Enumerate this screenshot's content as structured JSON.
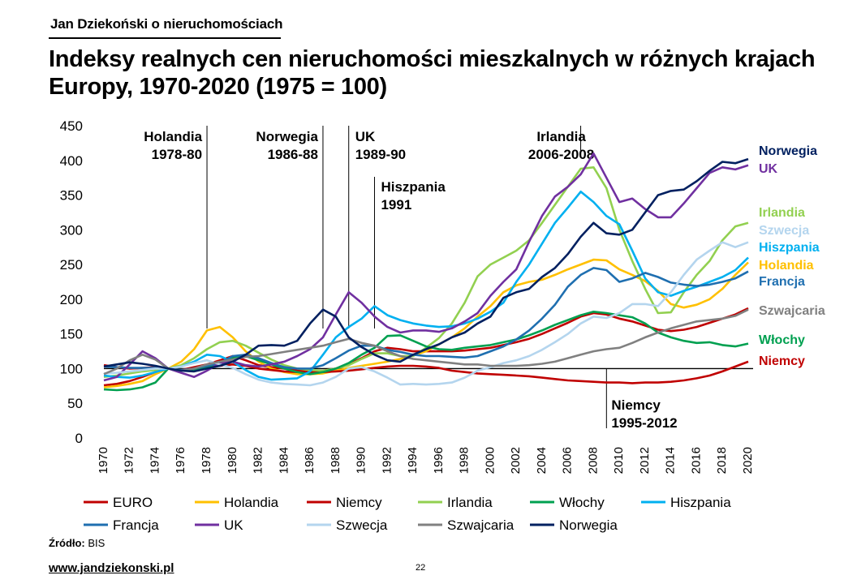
{
  "header": {
    "brand": "Jan Dziekoński o nieruchomościach",
    "title": "Indeksy realnych cen nieruchomości mieszkalnych w różnych krajach Europy, 1970-2020 (1975 = 100)"
  },
  "footer": {
    "source_label": "Źródło:",
    "source_value": "BIS",
    "website": "www.jandziekonski.pl",
    "page_number": "22"
  },
  "chart_data": {
    "type": "line",
    "title": "Indeksy realnych cen nieruchomości mieszkalnych w różnych krajach Europy, 1970-2020 (1975 = 100)",
    "xlabel": "",
    "ylabel": "",
    "xlim": [
      1970,
      2020
    ],
    "ylim": [
      0,
      450
    ],
    "yticks": [
      0,
      50,
      100,
      150,
      200,
      250,
      300,
      350,
      400,
      450
    ],
    "xticks": [
      1970,
      1972,
      1974,
      1976,
      1978,
      1980,
      1982,
      1984,
      1986,
      1988,
      1990,
      1992,
      1994,
      1996,
      1998,
      2000,
      2002,
      2004,
      2006,
      2008,
      2010,
      2012,
      2014,
      2016,
      2018,
      2020
    ],
    "grid": false,
    "baseline": 100,
    "legend_position": "bottom",
    "annotations": [
      {
        "year": 1978,
        "lines": [
          "Holandia",
          "1978-80"
        ],
        "side": "left"
      },
      {
        "year": 1987,
        "lines": [
          "Norwegia",
          "1986-88"
        ],
        "side": "left"
      },
      {
        "year": 1989,
        "lines": [
          "UK",
          "1989-90"
        ],
        "side": "right"
      },
      {
        "year": 1991,
        "lines": [
          "Hiszpania",
          "1991"
        ],
        "side": "right"
      },
      {
        "year": 2007,
        "lines": [
          "Irlandia",
          "2006-2008"
        ],
        "side": "center"
      },
      {
        "year": 2009,
        "lines": [
          "Niemcy",
          "1995-2012"
        ],
        "side": "right-below"
      }
    ],
    "series": [
      {
        "name": "EURO",
        "color": "#c00000",
        "end_label": "",
        "values": [
          76,
          78,
          82,
          88,
          95,
          100,
          98,
          102,
          106,
          112,
          118,
          112,
          105,
          102,
          100,
          98,
          96,
          97,
          100,
          106,
          115,
          125,
          130,
          128,
          125,
          125,
          125,
          125,
          126,
          128,
          130,
          134,
          138,
          143,
          150,
          158,
          166,
          175,
          180,
          178,
          172,
          168,
          162,
          156,
          154,
          156,
          160,
          166,
          172,
          178,
          187
        ]
      },
      {
        "name": "Holandia",
        "color": "#ffc000",
        "end_label": "Holandia",
        "values": [
          73,
          75,
          78,
          82,
          92,
          100,
          110,
          128,
          155,
          160,
          145,
          125,
          110,
          100,
          95,
          92,
          92,
          93,
          97,
          101,
          104,
          107,
          110,
          114,
          119,
          125,
          135,
          145,
          158,
          175,
          190,
          210,
          220,
          225,
          228,
          235,
          243,
          250,
          257,
          256,
          243,
          235,
          226,
          212,
          193,
          188,
          192,
          200,
          215,
          235,
          253
        ]
      },
      {
        "name": "Niemcy",
        "color": "#c00000",
        "end_label": "Niemcy",
        "values": [
          105,
          102,
          100,
          101,
          102,
          100,
          98,
          100,
          102,
          104,
          106,
          104,
          100,
          98,
          96,
          95,
          95,
          95,
          96,
          97,
          99,
          101,
          103,
          104,
          104,
          103,
          101,
          97,
          95,
          93,
          92,
          91,
          90,
          89,
          87,
          85,
          83,
          82,
          81,
          80,
          80,
          79,
          80,
          80,
          81,
          83,
          86,
          90,
          96,
          103,
          110
        ]
      },
      {
        "name": "Irlandia",
        "color": "#92d050",
        "end_label": "Irlandia",
        "values": [
          88,
          90,
          93,
          96,
          98,
          100,
          105,
          115,
          128,
          138,
          140,
          133,
          123,
          113,
          105,
          100,
          98,
          97,
          100,
          105,
          114,
          122,
          122,
          118,
          118,
          130,
          144,
          165,
          195,
          233,
          250,
          260,
          270,
          285,
          310,
          336,
          362,
          388,
          390,
          360,
          300,
          255,
          215,
          180,
          181,
          210,
          235,
          255,
          285,
          305,
          310
        ]
      },
      {
        "name": "Włochy",
        "color": "#00a050",
        "end_label": "Włochy",
        "values": [
          70,
          69,
          70,
          73,
          80,
          100,
          98,
          99,
          101,
          106,
          115,
          118,
          112,
          106,
          100,
          95,
          92,
          95,
          100,
          108,
          120,
          130,
          147,
          148,
          140,
          132,
          128,
          127,
          130,
          132,
          134,
          138,
          142,
          148,
          155,
          163,
          170,
          177,
          182,
          180,
          177,
          174,
          165,
          152,
          145,
          140,
          137,
          138,
          134,
          132,
          136
        ]
      },
      {
        "name": "Hiszpania",
        "color": "#00b0f0",
        "end_label": "Hiszpania",
        "values": [
          90,
          88,
          87,
          90,
          95,
          100,
          103,
          110,
          120,
          118,
          110,
          98,
          88,
          84,
          85,
          86,
          96,
          120,
          145,
          160,
          172,
          190,
          177,
          170,
          165,
          162,
          160,
          161,
          165,
          172,
          182,
          195,
          225,
          250,
          280,
          310,
          332,
          355,
          340,
          320,
          308,
          270,
          230,
          210,
          205,
          212,
          218,
          225,
          232,
          242,
          260
        ]
      },
      {
        "name": "Francja",
        "color": "#1f6fb0",
        "end_label": "Francja",
        "values": [
          103,
          102,
          101,
          101,
          101,
          100,
          98,
          100,
          104,
          108,
          118,
          120,
          115,
          108,
          102,
          100,
          100,
          105,
          115,
          126,
          133,
          133,
          127,
          124,
          120,
          118,
          118,
          117,
          116,
          118,
          125,
          132,
          142,
          155,
          172,
          192,
          218,
          235,
          245,
          242,
          225,
          230,
          238,
          232,
          224,
          221,
          219,
          221,
          225,
          230,
          240
        ]
      },
      {
        "name": "UK",
        "color": "#7030a0",
        "end_label": "UK",
        "values": [
          83,
          88,
          106,
          125,
          115,
          100,
          94,
          88,
          97,
          108,
          110,
          105,
          103,
          106,
          110,
          118,
          128,
          145,
          178,
          210,
          195,
          175,
          160,
          152,
          155,
          155,
          153,
          158,
          168,
          180,
          205,
          225,
          243,
          283,
          320,
          348,
          362,
          380,
          410,
          375,
          340,
          345,
          330,
          318,
          318,
          338,
          360,
          382,
          390,
          387,
          393
        ]
      },
      {
        "name": "Szwecja",
        "color": "#b4d5ee",
        "end_label": "Szwecja",
        "values": [
          93,
          94,
          96,
          98,
          100,
          100,
          103,
          108,
          112,
          106,
          101,
          92,
          84,
          80,
          78,
          77,
          76,
          80,
          88,
          100,
          102,
          96,
          87,
          77,
          78,
          77,
          78,
          80,
          87,
          97,
          102,
          108,
          112,
          118,
          127,
          138,
          150,
          165,
          175,
          173,
          180,
          193,
          193,
          190,
          210,
          235,
          257,
          270,
          282,
          275,
          282
        ]
      },
      {
        "name": "Szwajcaria",
        "color": "#808080",
        "end_label": "Szwajcaria",
        "values": [
          92,
          100,
          112,
          120,
          113,
          100,
          97,
          100,
          106,
          110,
          113,
          117,
          118,
          121,
          124,
          127,
          130,
          133,
          138,
          143,
          137,
          133,
          125,
          118,
          114,
          112,
          110,
          108,
          106,
          106,
          104,
          104,
          104,
          105,
          107,
          110,
          115,
          120,
          125,
          128,
          130,
          137,
          145,
          152,
          158,
          163,
          168,
          170,
          172,
          176,
          185
        ]
      },
      {
        "name": "Norwegia",
        "color": "#002060",
        "end_label": "Norwegia",
        "values": [
          103,
          106,
          109,
          107,
          104,
          100,
          97,
          96,
          100,
          104,
          110,
          120,
          133,
          134,
          133,
          140,
          165,
          185,
          175,
          145,
          131,
          120,
          112,
          110,
          120,
          128,
          135,
          145,
          152,
          165,
          175,
          202,
          210,
          215,
          232,
          245,
          265,
          290,
          310,
          295,
          293,
          300,
          325,
          350,
          356,
          358,
          370,
          385,
          398,
          396,
          402
        ]
      }
    ]
  }
}
